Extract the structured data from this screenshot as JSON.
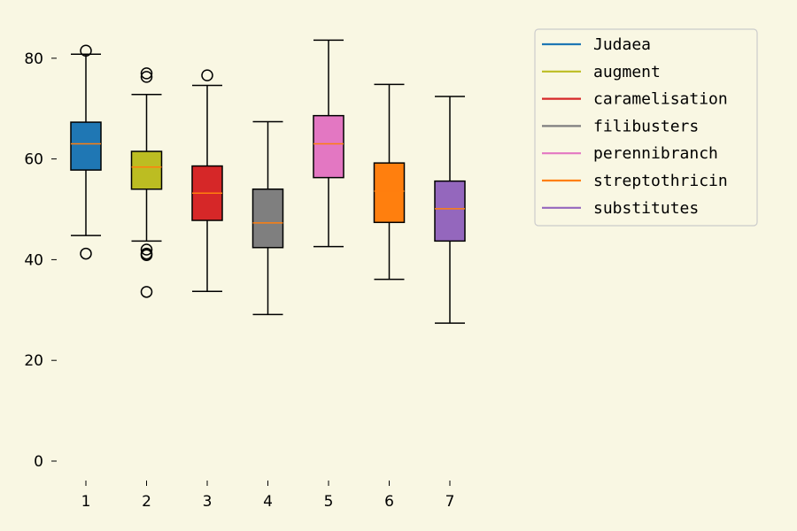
{
  "chart_data": {
    "type": "boxplot",
    "title": "",
    "xlabel": "",
    "ylabel": "",
    "ylim": [
      0,
      85
    ],
    "categories": [
      "1",
      "2",
      "3",
      "4",
      "5",
      "6",
      "7"
    ],
    "yticks": [
      0,
      20,
      40,
      60,
      80
    ],
    "legend_position": "top-right",
    "grid": false,
    "median_color": "#ff7f0e",
    "series": [
      {
        "name": "Judaea",
        "color": "#1f77b4",
        "whisker_low": 44.8,
        "q1": 57.8,
        "median": 63.0,
        "q3": 67.3,
        "whisker_high": 80.8,
        "outliers": [
          81.5,
          41.2
        ]
      },
      {
        "name": "augment",
        "color": "#bcbd22",
        "whisker_low": 43.7,
        "q1": 54.0,
        "median": 58.4,
        "q3": 61.5,
        "whisker_high": 72.8,
        "outliers": [
          77.0,
          76.3,
          42.0,
          41.2,
          40.9,
          33.6
        ]
      },
      {
        "name": "caramelisation",
        "color": "#d62728",
        "whisker_low": 33.7,
        "q1": 47.8,
        "median": 53.2,
        "q3": 58.6,
        "whisker_high": 74.6,
        "outliers": [
          76.6
        ]
      },
      {
        "name": "filibusters",
        "color": "#7f7f7f",
        "whisker_low": 29.1,
        "q1": 42.4,
        "median": 47.3,
        "q3": 54.0,
        "whisker_high": 67.4,
        "outliers": []
      },
      {
        "name": "perennibranch",
        "color": "#e377c2",
        "whisker_low": 42.6,
        "q1": 56.3,
        "median": 63.0,
        "q3": 68.6,
        "whisker_high": 83.6,
        "outliers": []
      },
      {
        "name": "streptothricin",
        "color": "#ff7f0e",
        "whisker_low": 36.1,
        "q1": 47.4,
        "median": 53.6,
        "q3": 59.2,
        "whisker_high": 74.8,
        "outliers": []
      },
      {
        "name": "substitutes",
        "color": "#9467bd",
        "whisker_low": 27.4,
        "q1": 43.7,
        "median": 50.1,
        "q3": 55.6,
        "whisker_high": 72.4,
        "outliers": []
      }
    ]
  }
}
